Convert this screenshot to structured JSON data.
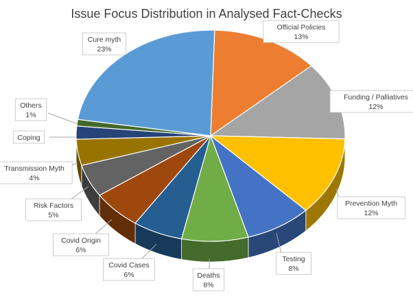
{
  "chart_data": {
    "type": "pie",
    "title": "Issue Focus Distribution in Analysed Fact-Checks",
    "slices": [
      {
        "name": "Official Policies",
        "value": 13,
        "label": "13%",
        "color": "#ED7D31"
      },
      {
        "name": "Funding / Palliatives",
        "value": 12,
        "label": "12%",
        "color": "#A5A5A5"
      },
      {
        "name": "Prevention Myth",
        "value": 12,
        "label": "12%",
        "color": "#FFC000"
      },
      {
        "name": "Testing",
        "value": 8,
        "label": "8%",
        "color": "#4472C4"
      },
      {
        "name": "Deaths",
        "value": 8,
        "label": "8%",
        "color": "#70AD47"
      },
      {
        "name": "Covid Cases",
        "value": 6,
        "label": "6%",
        "color": "#255E91"
      },
      {
        "name": "Covid Origin",
        "value": 6,
        "label": "6%",
        "color": "#9E480E"
      },
      {
        "name": "Risk Factors",
        "value": 5,
        "label": "5%",
        "color": "#636363"
      },
      {
        "name": "Transmission Myth",
        "value": 4,
        "label": "4%",
        "color": "#997300"
      },
      {
        "name": "Coping",
        "value": 2,
        "label": "",
        "color": "#264478"
      },
      {
        "name": "Others",
        "value": 1,
        "label": "1%",
        "color": "#43682B"
      },
      {
        "name": "Cure myth",
        "value": 23,
        "label": "23%",
        "color": "#5B9BD5"
      }
    ],
    "legend": "none",
    "style": "3d-pie"
  }
}
